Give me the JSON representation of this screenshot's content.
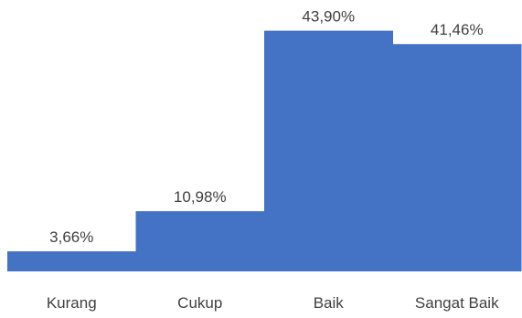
{
  "chart_data": {
    "type": "bar",
    "categories": [
      "Kurang",
      "Cukup",
      "Baik",
      "Sangat Baik"
    ],
    "values": [
      3.66,
      10.98,
      43.9,
      41.46
    ],
    "data_labels": [
      "3,66%",
      "10,98%",
      "43,90%",
      "41,46%"
    ],
    "title": "",
    "xlabel": "",
    "ylabel": "",
    "ylim": [
      0,
      45
    ],
    "bar_gap": 0,
    "grid": false,
    "legend": "none",
    "bar_color": "#4472C4",
    "text_color": "#404040"
  }
}
